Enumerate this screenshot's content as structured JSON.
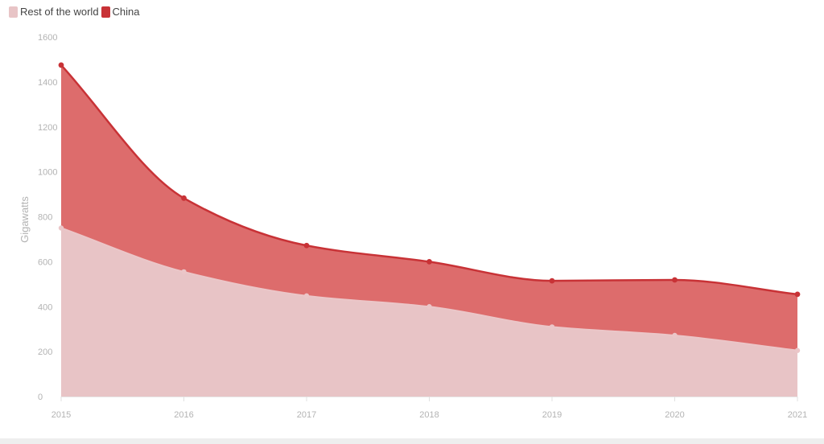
{
  "chart_data": {
    "type": "area",
    "stacked": true,
    "title": "",
    "xlabel": "",
    "ylabel": "Gigawatts",
    "categories": [
      "2015",
      "2016",
      "2017",
      "2018",
      "2019",
      "2020",
      "2021"
    ],
    "ylim": [
      0,
      1600
    ],
    "yticks": [
      0,
      200,
      400,
      600,
      800,
      1000,
      1200,
      1400,
      1600
    ],
    "grid": false,
    "legend": "top-left",
    "series": [
      {
        "name": "Rest of the world",
        "color": "#e8c4c6",
        "line_color": "#ebc6c8",
        "values": [
          750,
          555,
          448,
          400,
          310,
          272,
          205
        ]
      },
      {
        "name": "China",
        "color": "#dd6c6c",
        "line_color": "#c83236",
        "values": [
          725,
          328,
          224,
          200,
          205,
          247,
          250
        ]
      }
    ]
  }
}
